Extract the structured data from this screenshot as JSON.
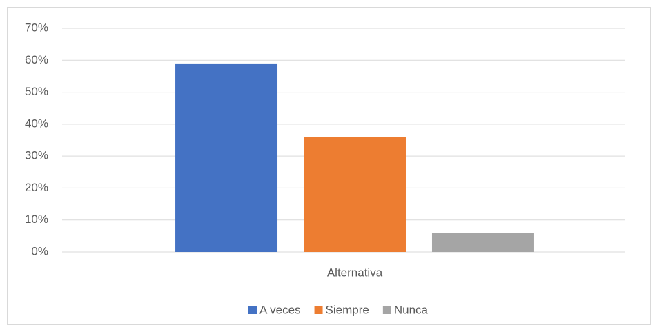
{
  "chart_data": {
    "type": "bar",
    "categories": [
      "Alternativa"
    ],
    "series": [
      {
        "name": "A veces",
        "color": "#4472c4",
        "values": [
          59
        ]
      },
      {
        "name": "Siempre",
        "color": "#ed7d31",
        "values": [
          36
        ]
      },
      {
        "name": "Nunca",
        "color": "#a5a5a5",
        "values": [
          6
        ]
      }
    ],
    "ylim": [
      0,
      70
    ],
    "yticks": [
      {
        "value": 0,
        "label": "0%"
      },
      {
        "value": 10,
        "label": "10%"
      },
      {
        "value": 20,
        "label": "20%"
      },
      {
        "value": 30,
        "label": "30%"
      },
      {
        "value": 40,
        "label": "40%"
      },
      {
        "value": 50,
        "label": "50%"
      },
      {
        "value": 60,
        "label": "60%"
      },
      {
        "value": 70,
        "label": "70%"
      }
    ],
    "grid": true,
    "legend": "bottom"
  }
}
